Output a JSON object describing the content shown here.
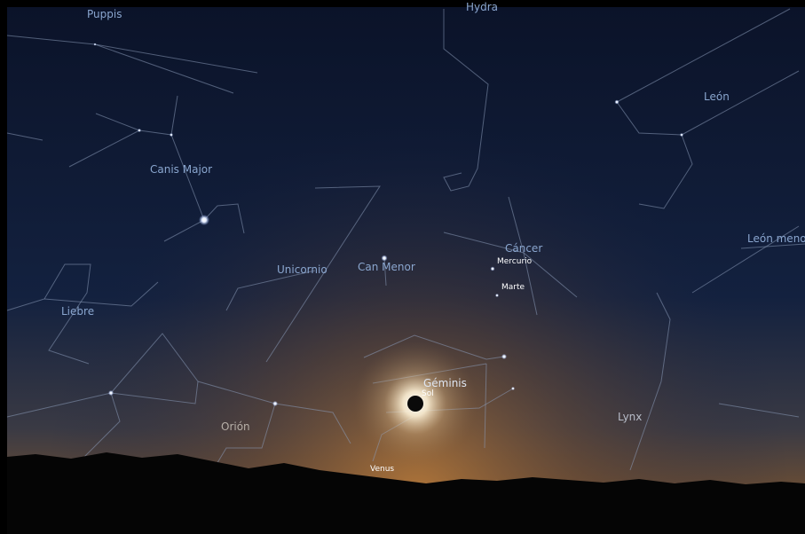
{
  "constellations": [
    "Puppis",
    "Hydra",
    "León",
    "Canis Major",
    "León menor",
    "Cáncer",
    "Can Menor",
    "Unicornio",
    "Liebre",
    "Géminis",
    "Orión",
    "Lynx"
  ],
  "planets": [
    "Mercurio",
    "Marte",
    "Sol",
    "Venus"
  ]
}
